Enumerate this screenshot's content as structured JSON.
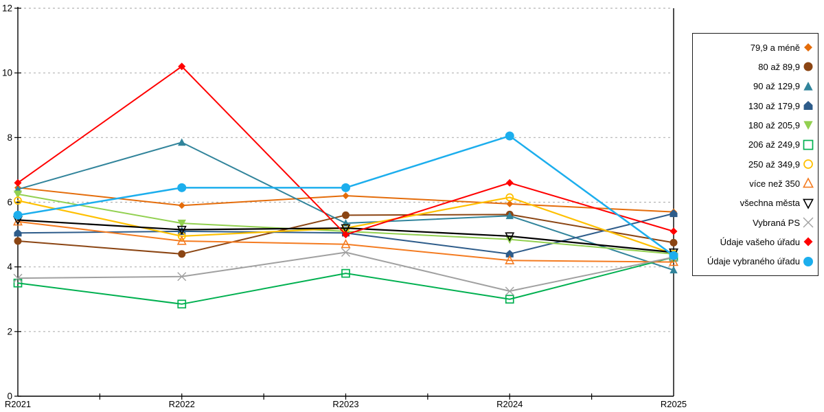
{
  "chart_data": {
    "type": "line",
    "title": "",
    "xlabel": "",
    "ylabel": "",
    "categories": [
      "R2021",
      "R2022",
      "R2023",
      "R2024",
      "R2025"
    ],
    "ylim": [
      0,
      12
    ],
    "yticks": [
      0,
      2,
      4,
      6,
      8,
      10,
      12
    ],
    "ytick_labels": [
      "0",
      "2",
      "4",
      "6",
      "8",
      "10",
      "12"
    ],
    "grid": "horizontal-dotted",
    "gridline_color": "#b2b2b2",
    "axis_color": "#000000",
    "legend_position": "right-outside",
    "series": [
      {
        "name": "79,9 a méně",
        "color": "#e46c0a",
        "marker": "diamond",
        "line_width": 2,
        "marker_size": 5,
        "values": [
          6.45,
          5.9,
          6.2,
          5.95,
          5.7
        ]
      },
      {
        "name": "80 až 89,9",
        "color": "#8b4513",
        "marker": "circle",
        "line_width": 2,
        "marker_size": 5.5,
        "values": [
          4.8,
          4.4,
          5.6,
          5.62,
          4.75
        ]
      },
      {
        "name": "90 až 129,9",
        "color": "#31849b",
        "marker": "triangle-up",
        "line_width": 2,
        "marker_size": 6,
        "values": [
          6.4,
          7.85,
          5.35,
          5.58,
          3.9
        ]
      },
      {
        "name": "130 až 179,9",
        "color": "#2e5c8a",
        "marker": "pentagon",
        "line_width": 2,
        "marker_size": 6,
        "values": [
          5.05,
          5.1,
          5.05,
          4.4,
          5.65
        ]
      },
      {
        "name": "180 až 205,9",
        "color": "#92d050",
        "marker": "triangle-down",
        "line_width": 2,
        "marker_size": 6.5,
        "values": [
          6.25,
          5.35,
          5.1,
          4.85,
          4.4
        ]
      },
      {
        "name": "206 až 249,9",
        "color": "#00b050",
        "marker": "square-open",
        "line_width": 2,
        "marker_size": 5.5,
        "values": [
          3.5,
          2.85,
          3.8,
          3.0,
          4.3
        ]
      },
      {
        "name": "250 až 349,9",
        "color": "#ffc000",
        "marker": "circle-open",
        "line_width": 2.2,
        "marker_size": 5,
        "values": [
          6.05,
          4.95,
          5.2,
          6.15,
          4.4
        ]
      },
      {
        "name": "více než 350",
        "color": "#f47b20",
        "marker": "triangle-up-open",
        "line_width": 2,
        "marker_size": 6,
        "values": [
          5.4,
          4.8,
          4.7,
          4.2,
          4.15
        ]
      },
      {
        "name": "všechna města",
        "color": "#000000",
        "marker": "triangle-down-open",
        "line_width": 2.2,
        "marker_size": 6,
        "values": [
          5.45,
          5.15,
          5.2,
          4.95,
          4.45
        ]
      },
      {
        "name": "Vybraná PS",
        "color": "#a0a0a0",
        "marker": "x",
        "line_width": 2,
        "marker_size": 6,
        "values": [
          3.65,
          3.7,
          4.45,
          3.25,
          4.3
        ]
      },
      {
        "name": "Údaje vašeho úřadu",
        "color": "#ff0000",
        "marker": "diamond",
        "line_width": 2,
        "marker_size": 5.5,
        "values": [
          6.6,
          10.2,
          5.0,
          6.6,
          5.1
        ]
      },
      {
        "name": "Údaje vybraného úřadu",
        "color": "#1caeed",
        "marker": "circle",
        "line_width": 2.5,
        "marker_size": 6.5,
        "values": [
          5.6,
          6.45,
          6.45,
          8.05,
          4.35
        ]
      }
    ]
  }
}
